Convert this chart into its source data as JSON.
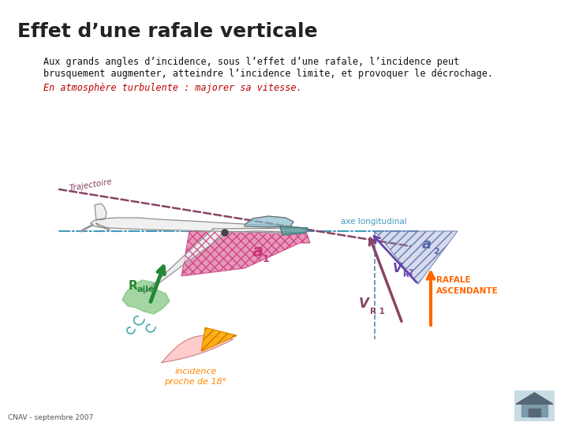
{
  "title": "Effet d’une rafale verticale",
  "bg_color": "#ffffff",
  "title_color": "#222222",
  "title_fontsize": 18,
  "para1_line1": "Aux grands angles d’incidence, sous l’effet d’une rafale, l’incidence peut",
  "para1_line2": "brusquement augmenter, atteindre l’incidence limite, et provoquer le décrochage.",
  "para2_text": "En atmosphère turbulente : majorer sa vitesse.",
  "para1_color": "#111111",
  "para2_color": "#bb0000",
  "footer_text": "CNAV - septembre 2007",
  "traj_label": "Trajectoire",
  "axe_label": "axe longitudinal",
  "a1_label": "a",
  "a1_sub": "1",
  "a2_label": "a",
  "a2_sub": "2",
  "vr1_label": "V",
  "vr1_sub": "R 1",
  "vr2_label": "V",
  "vr2_sub": "R2",
  "raile_label": "R",
  "raile_sub": "aile",
  "incidence_label": "incidence\nproche de 18°",
  "rafale_label": "RAFALE\nASCENDANTE",
  "axis_color": "#4499bb",
  "traj_color": "#884466",
  "a1_color": "#cc3377",
  "a2_color": "#8888cc",
  "vr1_color": "#884466",
  "vr2_color": "#664488",
  "rafale_color": "#ff6600",
  "raile_color": "#228833",
  "incidence_color": "#ff8800"
}
